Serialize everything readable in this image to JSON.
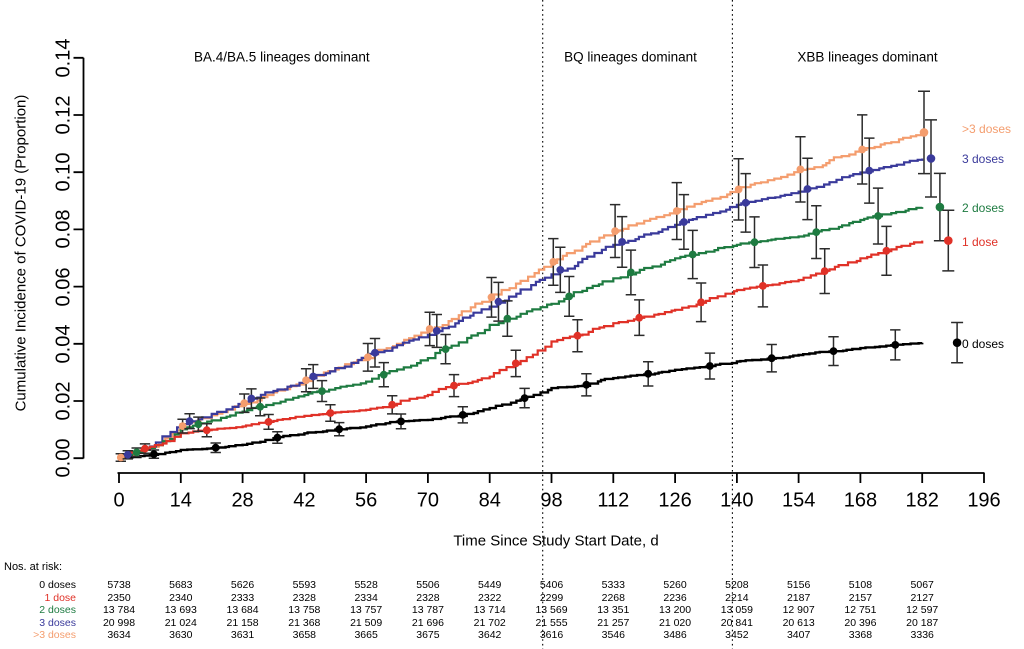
{
  "chart_data": {
    "type": "line",
    "title": "",
    "xlabel": "Time Since Study Start Date, d",
    "ylabel": "Cumulative Incidence of COVID-19 (Proportion)",
    "xlim": [
      0,
      196
    ],
    "ylim": [
      0,
      0.14
    ],
    "x_ticks": [
      0,
      14,
      28,
      42,
      56,
      70,
      84,
      98,
      112,
      126,
      140,
      154,
      168,
      182,
      196
    ],
    "y_ticks": [
      "0.00",
      "0.02",
      "0.04",
      "0.06",
      "0.08",
      "0.10",
      "0.12",
      "0.14"
    ],
    "grid": false,
    "legend_position": "right-outside",
    "x_days": [
      0,
      7,
      14,
      21,
      28,
      35,
      42,
      49,
      56,
      63,
      70,
      77,
      84,
      91,
      98,
      105,
      112,
      119,
      126,
      133,
      140,
      147,
      154,
      161,
      168,
      175,
      182
    ],
    "series": [
      {
        "name": ">3 doses",
        "color": "#F49D6E",
        "marker_day_offset": -3.6,
        "values": [
          0,
          0.004,
          0.011,
          0.015,
          0.019,
          0.023,
          0.027,
          0.031,
          0.035,
          0.04,
          0.0449,
          0.05,
          0.0559,
          0.062,
          0.0683,
          0.074,
          0.0792,
          0.083,
          0.0862,
          0.09,
          0.0938,
          0.0972,
          0.1008,
          0.1042,
          0.1078,
          0.1105,
          0.1139
        ]
      },
      {
        "name": "3 doses",
        "color": "#3A3A9B",
        "marker_day_offset": -2.0,
        "values": [
          0,
          0.0041,
          0.0119,
          0.0155,
          0.0198,
          0.0235,
          0.0274,
          0.0315,
          0.0358,
          0.0395,
          0.0431,
          0.048,
          0.053,
          0.059,
          0.0643,
          0.0697,
          0.0746,
          0.0782,
          0.0816,
          0.0851,
          0.0886,
          0.091,
          0.0932,
          0.0965,
          0.0999,
          0.1022,
          0.1048
        ]
      },
      {
        "name": "2 doses",
        "color": "#1E7B41",
        "marker_day_offset": 0.0,
        "values": [
          0,
          0.0036,
          0.0101,
          0.0132,
          0.0163,
          0.0192,
          0.0221,
          0.0245,
          0.0268,
          0.031,
          0.035,
          0.0405,
          0.0466,
          0.0505,
          0.054,
          0.0585,
          0.0629,
          0.0665,
          0.0699,
          0.0722,
          0.0746,
          0.0762,
          0.0775,
          0.0802,
          0.0833,
          0.0857,
          0.0878
        ]
      },
      {
        "name": "1 dose",
        "color": "#E03127",
        "marker_day_offset": 1.9,
        "values": [
          0,
          0.004,
          0.0087,
          0.01,
          0.0111,
          0.013,
          0.0148,
          0.016,
          0.0169,
          0.019,
          0.0221,
          0.026,
          0.0285,
          0.034,
          0.0408,
          0.0432,
          0.0472,
          0.0495,
          0.0519,
          0.055,
          0.0588,
          0.0605,
          0.0623,
          0.066,
          0.0699,
          0.073,
          0.0761
        ]
      },
      {
        "name": "0 doses",
        "color": "#000000",
        "marker_day_offset": 3.9,
        "values": [
          0,
          0.0012,
          0.0029,
          0.0035,
          0.0047,
          0.007,
          0.0087,
          0.01,
          0.0111,
          0.0128,
          0.0134,
          0.0148,
          0.0175,
          0.0205,
          0.0245,
          0.0253,
          0.028,
          0.0293,
          0.0309,
          0.032,
          0.0338,
          0.0348,
          0.0361,
          0.0373,
          0.0385,
          0.0395,
          0.0404
        ]
      }
    ],
    "marker_interval_days": 14,
    "marker_first_center_day": 4,
    "annotations": [
      {
        "text": "BA.4/BA.5 lineages dominant",
        "x_day": 36.9
      },
      {
        "text": "BQ lineages dominant",
        "x_day": 115.9
      },
      {
        "text": "XBB lineages dominant",
        "x_day": 169.6
      }
    ],
    "vlines_days": [
      96,
      139
    ],
    "errorbar_color": "#2b2b2b"
  },
  "risk_table": {
    "header": "Nos. at risk:",
    "columns_days": [
      0,
      14,
      28,
      42,
      56,
      70,
      84,
      98,
      112,
      126,
      140,
      154,
      168,
      182
    ],
    "rows": [
      {
        "label": "0 doses",
        "color": "#000000",
        "values": [
          "5738",
          "5683",
          "5626",
          "5593",
          "5528",
          "5506",
          "5449",
          "5406",
          "5333",
          "5260",
          "5208",
          "5156",
          "5108",
          "5067"
        ]
      },
      {
        "label": "1 dose",
        "color": "#E03127",
        "values": [
          "2350",
          "2340",
          "2333",
          "2328",
          "2334",
          "2328",
          "2322",
          "2299",
          "2268",
          "2236",
          "2214",
          "2187",
          "2157",
          "2127"
        ]
      },
      {
        "label": "2 doses",
        "color": "#1E7B41",
        "values": [
          "13 784",
          "13 693",
          "13 684",
          "13 758",
          "13 757",
          "13 787",
          "13 714",
          "13 569",
          "13 351",
          "13 200",
          "13 059",
          "12 907",
          "12 751",
          "12 597"
        ]
      },
      {
        "label": "3 doses",
        "color": "#3A3A9B",
        "values": [
          "20 998",
          "21 024",
          "21 158",
          "21 368",
          "21 509",
          "21 696",
          "21 702",
          "21 555",
          "21 257",
          "21 020",
          "20 841",
          "20 613",
          "20 396",
          "20 187"
        ]
      },
      {
        "label": ">3 doses",
        "color": "#F49D6E",
        "values": [
          "3634",
          "3630",
          "3631",
          "3658",
          "3665",
          "3675",
          "3642",
          "3616",
          "3546",
          "3486",
          "3452",
          "3407",
          "3368",
          "3336"
        ]
      }
    ]
  }
}
